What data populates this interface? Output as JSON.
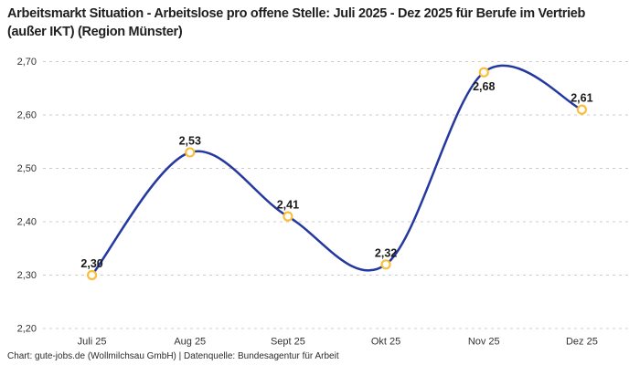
{
  "title": {
    "text": "Arbeitsmarkt Situation - Arbeitslose pro offene Stelle: Juli 2025 - Dez 2025 für Berufe im Vertrieb (außer IKT) (Region Münster)"
  },
  "footer": {
    "text": "Chart: gute-jobs.de (Wollmilchsau GmbH) | Datenquelle: Bundesagentur für Arbeit"
  },
  "chart_data": {
    "type": "line",
    "title": "Arbeitsmarkt Situation - Arbeitslose pro offene Stelle: Juli 2025 - Dez 2025 für Berufe im Vertrieb (außer IKT) (Region Münster)",
    "categories": [
      "Juli 25",
      "Aug 25",
      "Sept 25",
      "Okt 25",
      "Nov 25",
      "Dez 25"
    ],
    "values": [
      2.3,
      2.53,
      2.41,
      2.32,
      2.68,
      2.61
    ],
    "value_labels": [
      "2,30",
      "2,53",
      "2,41",
      "2,32",
      "2,68",
      "2,61"
    ],
    "label_positions": [
      "top",
      "top",
      "top",
      "top",
      "bottom",
      "top"
    ],
    "y_ticks": [
      {
        "value": 2.2,
        "label": "2,20"
      },
      {
        "value": 2.3,
        "label": "2,30"
      },
      {
        "value": 2.4,
        "label": "2,40"
      },
      {
        "value": 2.5,
        "label": "2,50"
      },
      {
        "value": 2.6,
        "label": "2,60"
      },
      {
        "value": 2.7,
        "label": "2,70"
      }
    ],
    "ylim": [
      2.2,
      2.7
    ],
    "xlabel": "",
    "ylabel": "",
    "smooth": true,
    "grid": "horizontal-dashed",
    "legend": "none",
    "colors": {
      "line": "#2438A0",
      "marker_stroke": "#FBBE3B",
      "marker_fill": "#FFFFFF",
      "gridline": "#CCCCCC",
      "tick_text": "#333333",
      "value_label_text": "#1A1A1A",
      "background": "#FFFFFF"
    }
  }
}
